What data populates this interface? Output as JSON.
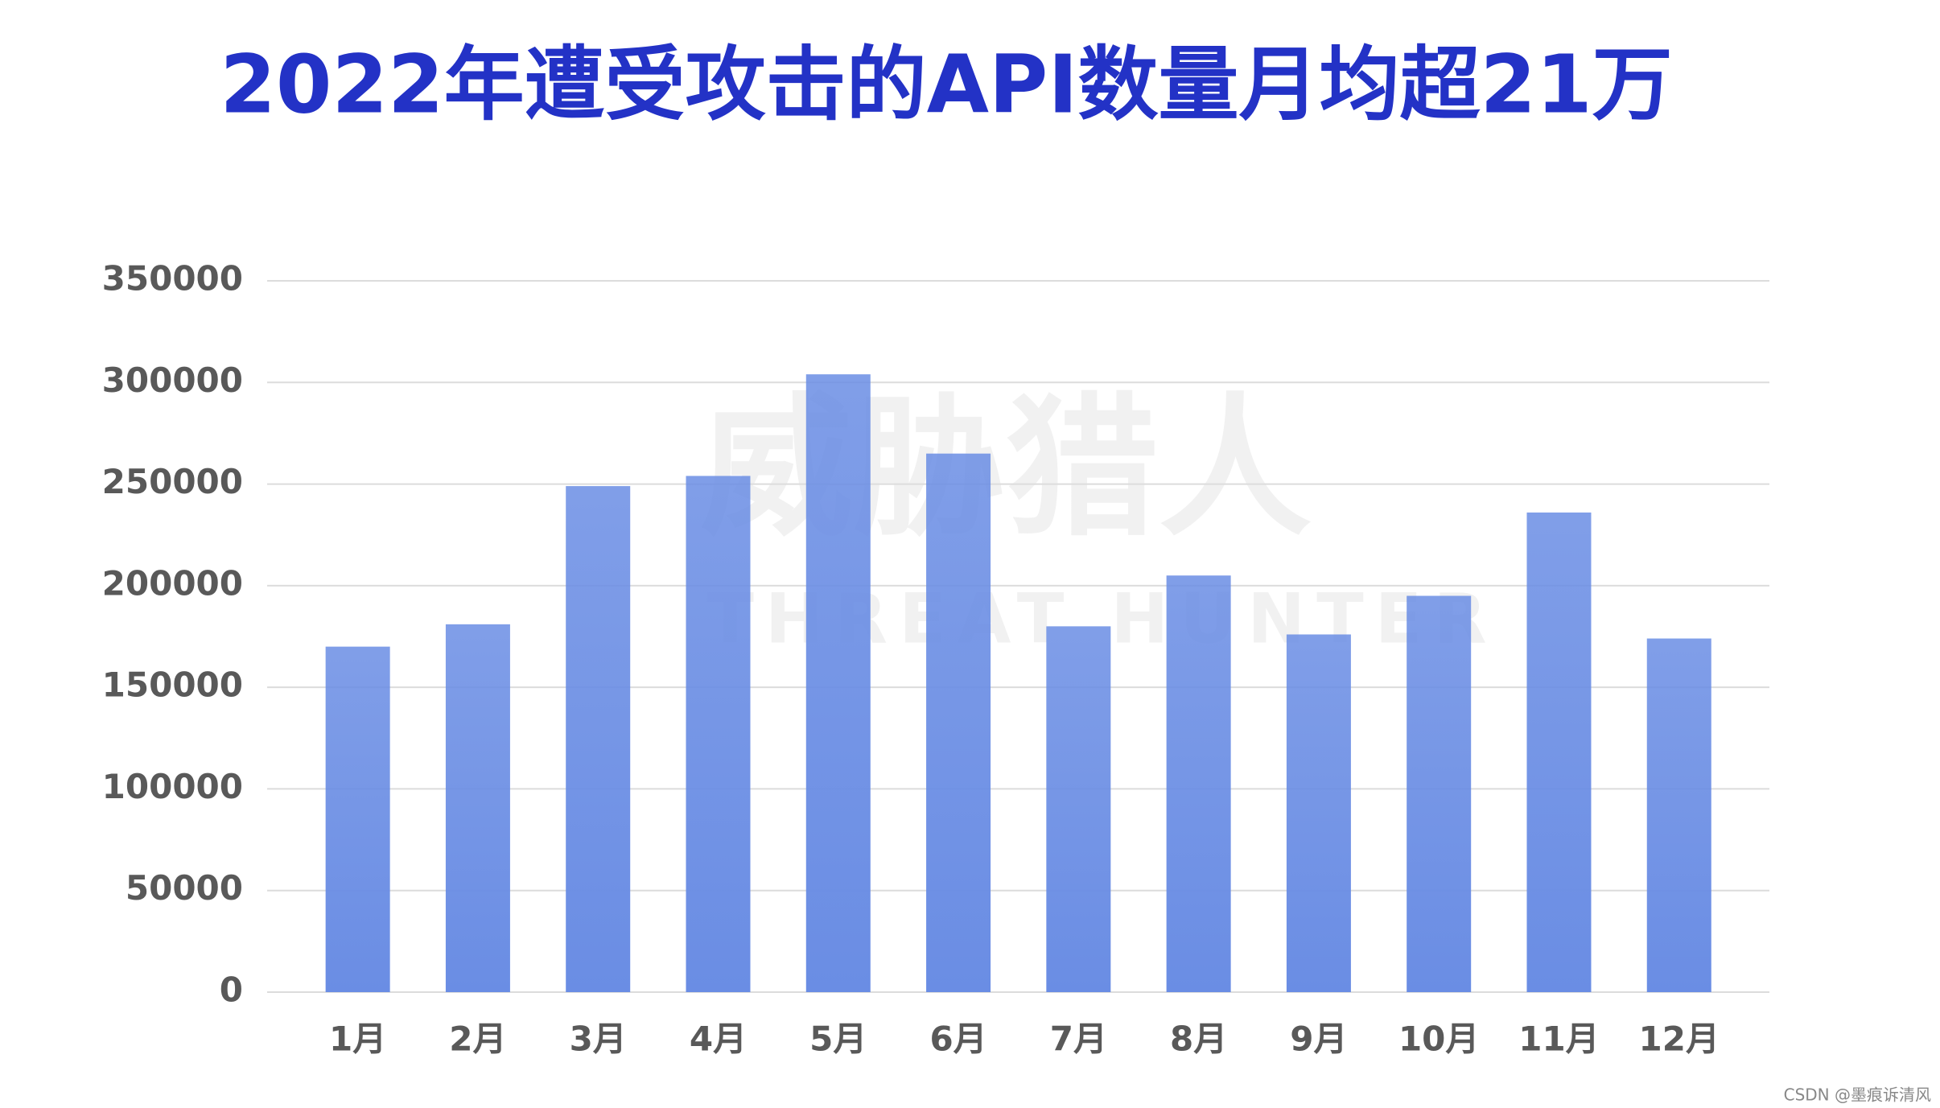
{
  "chart_data": {
    "type": "bar",
    "title": "2022年遭受攻击的API数量月均超21万",
    "categories": [
      "1月",
      "2月",
      "3月",
      "4月",
      "5月",
      "6月",
      "7月",
      "8月",
      "9月",
      "10月",
      "11月",
      "12月"
    ],
    "values": [
      170000,
      181000,
      249000,
      254000,
      304000,
      265000,
      180000,
      205000,
      176000,
      195000,
      236000,
      174000
    ],
    "color": "#6a8de4",
    "ylim": [
      0,
      350000
    ],
    "yticks": [
      0,
      50000,
      100000,
      150000,
      200000,
      250000,
      300000,
      350000
    ],
    "grid": true
  },
  "watermark": {
    "name": "威胁猎人",
    "subtitle": "THREAT HUNTER"
  },
  "footer": "CSDN @墨痕诉清风"
}
